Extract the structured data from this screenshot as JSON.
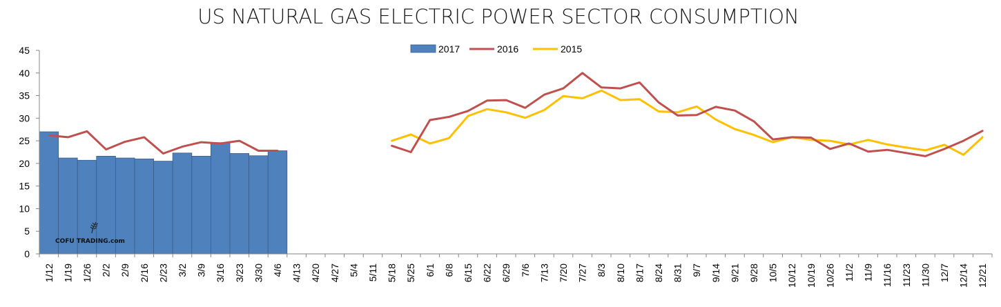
{
  "chart_data": {
    "type": "bar+line",
    "title": "US NATURAL GAS ELECTRIC POWER SECTOR CONSUMPTION",
    "xlabel": "",
    "ylabel": "",
    "ylim": [
      0,
      45
    ],
    "yticks": [
      "0",
      "5",
      "10",
      "15",
      "20",
      "25",
      "30",
      "35",
      "40",
      "45"
    ],
    "grid": false,
    "legend_position": "top-center",
    "categories": [
      "1/12",
      "1/19",
      "1/26",
      "2/2",
      "2/9",
      "2/16",
      "2/23",
      "3/2",
      "3/9",
      "3/16",
      "3/23",
      "3/30",
      "4/6",
      "4/13",
      "4/20",
      "4/27",
      "5/4",
      "5/11",
      "5/18",
      "5/25",
      "6/1",
      "6/8",
      "6/15",
      "6/22",
      "6/29",
      "7/6",
      "7/13",
      "7/20",
      "7/27",
      "8/3",
      "8/10",
      "8/17",
      "8/24",
      "8/31",
      "9/7",
      "9/14",
      "9/21",
      "9/28",
      "10/5",
      "10/12",
      "10/19",
      "10/26",
      "11/2",
      "11/9",
      "11/16",
      "11/23",
      "11/30",
      "12/7",
      "12/14",
      "12/21"
    ],
    "series": [
      {
        "name": "2017",
        "type": "bar",
        "color": "#4F81BD",
        "values": [
          27.0,
          21.2,
          20.7,
          21.6,
          21.2,
          21.0,
          20.5,
          22.3,
          21.6,
          24.6,
          22.2,
          21.7,
          22.8,
          null,
          null,
          null,
          null,
          null,
          null,
          null,
          null,
          null,
          null,
          null,
          null,
          null,
          null,
          null,
          null,
          null,
          null,
          null,
          null,
          null,
          null,
          null,
          null,
          null,
          null,
          null,
          null,
          null,
          null,
          null,
          null,
          null,
          null,
          null,
          null,
          null
        ]
      },
      {
        "name": "2016",
        "type": "line",
        "color": "#C0504D",
        "values": [
          26.2,
          25.8,
          27.1,
          23.1,
          24.8,
          25.8,
          22.2,
          23.7,
          24.7,
          24.4,
          25.0,
          22.8,
          22.8,
          null,
          null,
          null,
          null,
          null,
          23.9,
          22.5,
          29.6,
          30.3,
          31.6,
          33.9,
          34.0,
          32.3,
          35.2,
          36.6,
          40.0,
          36.8,
          36.6,
          37.9,
          33.5,
          30.6,
          30.7,
          32.5,
          31.7,
          29.3,
          25.3,
          25.8,
          25.7,
          23.2,
          24.4,
          22.6,
          23.0,
          22.3,
          21.6,
          23.2,
          25.0,
          27.2
        ]
      },
      {
        "name": "2015",
        "type": "line",
        "color": "#FFC000",
        "values": [
          null,
          null,
          null,
          null,
          null,
          null,
          null,
          null,
          null,
          null,
          null,
          null,
          null,
          null,
          null,
          null,
          null,
          null,
          25.0,
          26.4,
          24.4,
          25.6,
          30.5,
          32.0,
          31.3,
          30.1,
          31.8,
          34.9,
          34.4,
          36.1,
          34.0,
          34.2,
          31.5,
          31.3,
          32.6,
          29.7,
          27.6,
          26.3,
          24.7,
          25.8,
          25.2,
          25.0,
          24.2,
          25.2,
          24.2,
          23.5,
          22.9,
          24.1,
          21.9,
          25.8
        ]
      }
    ]
  },
  "watermark": {
    "text": "COFU TRADING.com"
  }
}
